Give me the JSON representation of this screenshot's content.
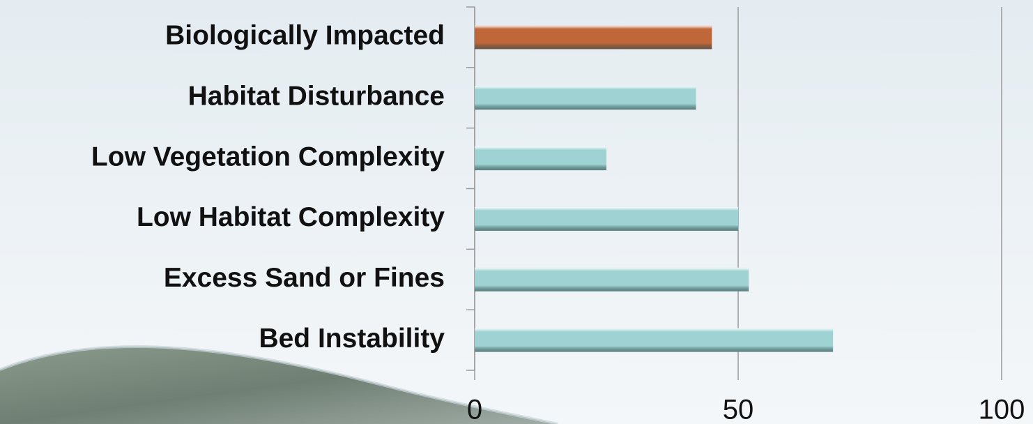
{
  "chart_data": {
    "type": "bar",
    "orientation": "horizontal",
    "categories": [
      "Biologically Impacted",
      "Habitat Disturbance",
      "Low Vegetation Complexity",
      "Low Habitat Complexity",
      "Excess Sand or Fines",
      "Bed Instability"
    ],
    "values": [
      45,
      42,
      25,
      50,
      52,
      68
    ],
    "colors": [
      "#c0673a",
      "#9fd3d3",
      "#9fd3d3",
      "#9fd3d3",
      "#9fd3d3",
      "#9fd3d3"
    ],
    "xlim": [
      0,
      100
    ],
    "xticks": [
      0,
      50,
      100
    ],
    "grid": true
  }
}
